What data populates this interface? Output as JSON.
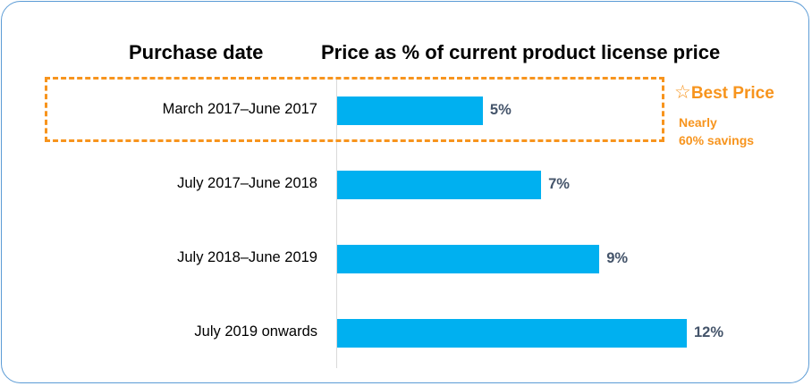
{
  "colors": {
    "bar": "#00b0f0",
    "value_label": "#44546a",
    "highlight": "#f7941d",
    "border": "#5b9bd5"
  },
  "chart_data": {
    "type": "bar",
    "orientation": "horizontal",
    "title": "",
    "category_header": "Purchase date",
    "value_header": "Price as % of current product license price",
    "categories": [
      "March 2017–June 2017",
      "July 2017–June 2018",
      "July 2018–June 2019",
      "July 2019 onwards"
    ],
    "values": [
      5,
      7,
      9,
      12
    ],
    "value_labels": [
      "5%",
      "7%",
      "9%",
      "12%"
    ],
    "xlim": [
      0,
      12
    ],
    "grid": false,
    "legend": "none",
    "highlight": {
      "category_index": 0,
      "badge": "Best Price",
      "badge_icon": "star-outline-icon",
      "note_lines": [
        "Nearly",
        "60% savings"
      ]
    }
  }
}
